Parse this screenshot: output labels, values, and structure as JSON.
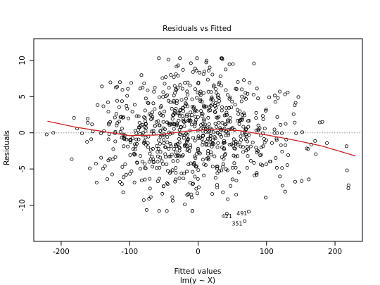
{
  "chart_data": {
    "type": "scatter",
    "title": "Residuals vs Fitted",
    "xlabel": "Fitted values",
    "xlabel_sub": "lm(y ~ X)",
    "ylabel": "Residuals",
    "xlim": [
      -240,
      240
    ],
    "ylim": [
      -15,
      13
    ],
    "x_ticks": [
      -200,
      -100,
      0,
      100,
      200
    ],
    "x_tick_labels": [
      "-200",
      "-100",
      "0",
      "100",
      "200"
    ],
    "y_ticks": [
      -10,
      -5,
      0,
      5,
      10
    ],
    "y_tick_labels": [
      "-10",
      "-5",
      "0",
      "5",
      "10"
    ],
    "grid": false,
    "reference_line": {
      "y": 0,
      "style": "dotted",
      "color": "#999999"
    },
    "smooth_line": {
      "color": "#cc2222",
      "points": [
        [
          -220,
          1.6
        ],
        [
          -180,
          0.8
        ],
        [
          -140,
          0.2
        ],
        [
          -100,
          -0.4
        ],
        [
          -60,
          -0.3
        ],
        [
          -20,
          0.2
        ],
        [
          20,
          0.5
        ],
        [
          60,
          0.3
        ],
        [
          100,
          -0.3
        ],
        [
          140,
          -1.0
        ],
        [
          180,
          -1.8
        ],
        [
          230,
          -3.2
        ]
      ]
    },
    "point_color": "#000000",
    "point_count": 800,
    "random_seed": 7,
    "annotations": [
      {
        "label": "421",
        "x": 42,
        "y": -11.5
      },
      {
        "label": "491",
        "x": 64,
        "y": -11.1
      },
      {
        "label": "351",
        "x": 57,
        "y": -12.5
      }
    ],
    "outliers": [
      {
        "x": 42,
        "y": -11.2
      },
      {
        "x": 74,
        "y": -10.9
      },
      {
        "x": 68,
        "y": -12.2
      }
    ]
  }
}
